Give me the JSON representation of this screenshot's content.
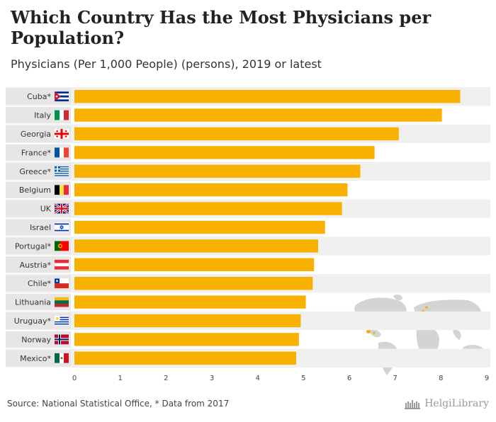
{
  "title": "Which Country Has the Most Physicians per Population?",
  "subtitle": "Physicians (Per 1,000 People) (persons), 2019 or latest",
  "source": "Source: National Statistical Office, * Data from 2017",
  "brand": "HelgiLibrary",
  "colors": {
    "bar": "#F8B100",
    "stripe": "#F0F0F0",
    "label_box": "#E6E6E6",
    "map_land": "#D4D4D4",
    "map_highlight": "#F8B100"
  },
  "chart_data": {
    "type": "bar",
    "orientation": "horizontal",
    "categories": [
      "Cuba*",
      "Italy",
      "Georgia",
      "France*",
      "Greece*",
      "Belgium",
      "UK",
      "Israel",
      "Portugal*",
      "Austria*",
      "Chile*",
      "Lithuania",
      "Uruguay*",
      "Norway",
      "Mexico*"
    ],
    "flags": [
      "cuba",
      "italy",
      "georgia",
      "france",
      "greece",
      "belgium",
      "uk",
      "israel",
      "portugal",
      "austria",
      "chile",
      "lithuania",
      "uruguay",
      "norway",
      "mexico"
    ],
    "values": [
      8.42,
      8.02,
      7.08,
      6.55,
      6.24,
      5.96,
      5.84,
      5.47,
      5.32,
      5.23,
      5.2,
      5.05,
      4.94,
      4.9,
      4.84
    ],
    "xlim": [
      0,
      9
    ],
    "xticks": [
      "0",
      "1",
      "2",
      "3",
      "4",
      "5",
      "6",
      "7",
      "8",
      "9"
    ],
    "xlabel": "",
    "ylabel": "",
    "grid": false
  }
}
